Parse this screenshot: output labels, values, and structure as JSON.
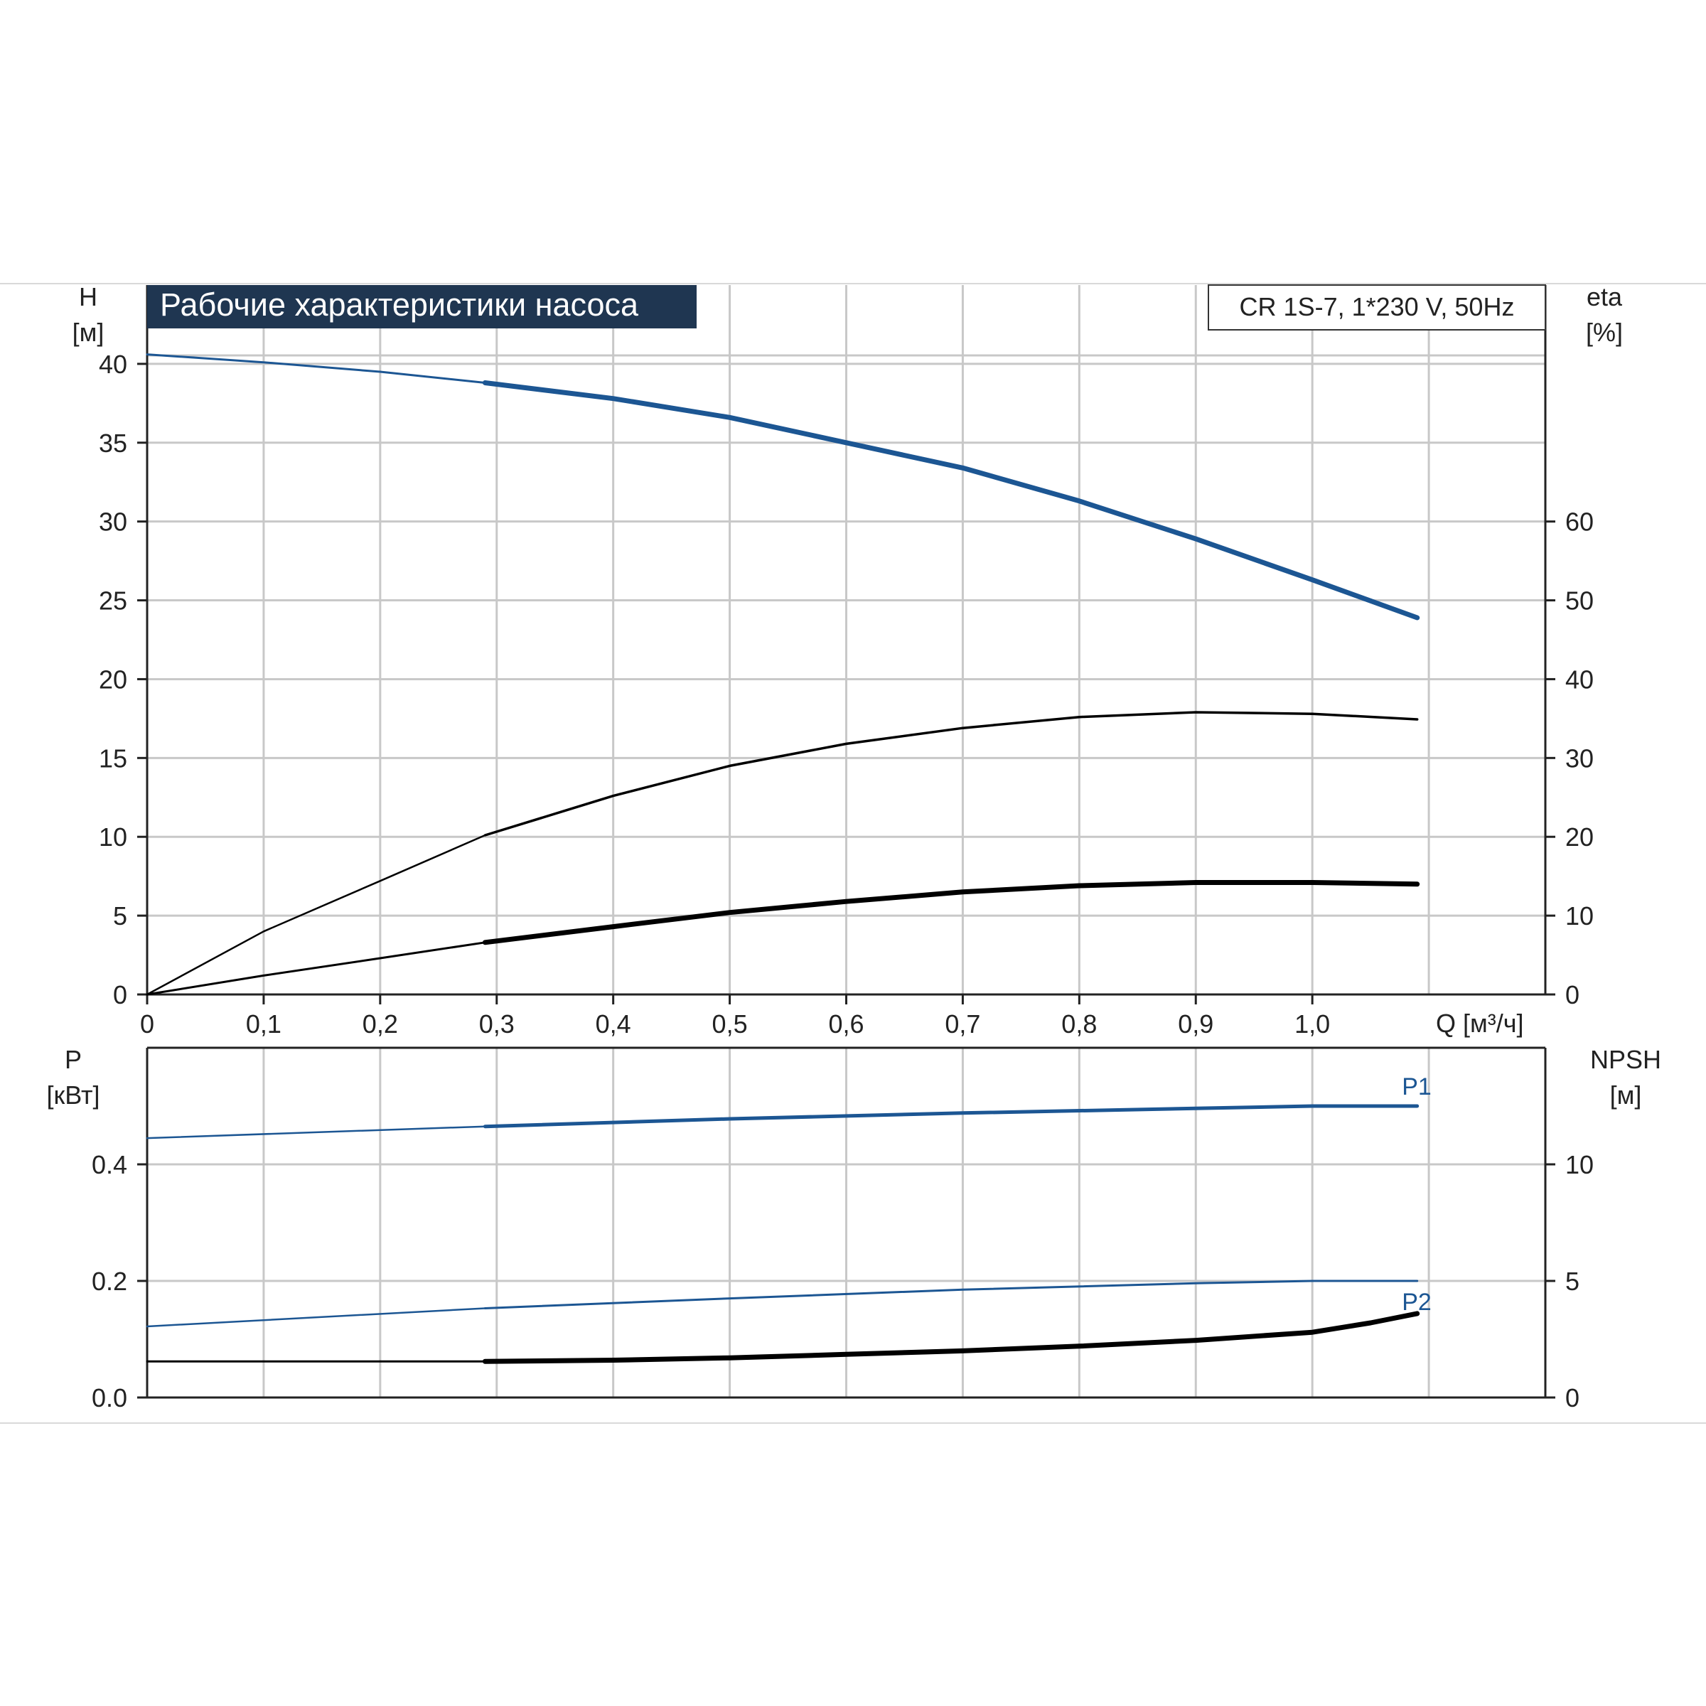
{
  "colors": {
    "blue": "#1c5693",
    "black": "#000000",
    "grid": "#c8c8c8",
    "title_bg": "#1f3651",
    "title_text": "#ffffff",
    "frame_line": "#d9d9d9"
  },
  "title": "Рабочие характеристики насоса",
  "model_label": "CR 1S-7, 1*230 V, 50Hz",
  "chart_data": [
    {
      "type": "line",
      "panel": "upper",
      "left_axis": {
        "label_top": "H",
        "label_bottom": "[м]",
        "ylim": [
          0,
          45
        ],
        "ticks": [
          0,
          5,
          10,
          15,
          20,
          25,
          30,
          35,
          40
        ],
        "tick_labels": [
          "0",
          "5",
          "10",
          "15",
          "20",
          "25",
          "30",
          "35",
          "40"
        ]
      },
      "right_axis": {
        "label_top": "eta",
        "label_bottom": "[%]",
        "ylim": [
          0,
          90
        ],
        "ticks": [
          0,
          10,
          20,
          30,
          40,
          50,
          60
        ],
        "tick_labels": [
          "0",
          "10",
          "20",
          "30",
          "40",
          "50",
          "60"
        ]
      },
      "x_axis": {
        "label": "Q [м³/ч]",
        "xlim": [
          0,
          1.2
        ],
        "ticks": [
          0,
          0.1,
          0.2,
          0.3,
          0.4,
          0.5,
          0.6,
          0.7,
          0.8,
          0.9,
          1.0
        ],
        "tick_labels": [
          "0",
          "0,1",
          "0,2",
          "0,3",
          "0,4",
          "0,5",
          "0,6",
          "0,7",
          "0,8",
          "0,9",
          "1,0"
        ]
      },
      "grid": true,
      "series": [
        {
          "axis": "left",
          "color": "blue",
          "x": [
            0,
            0.1,
            0.2,
            0.29,
            0.4,
            0.5,
            0.6,
            0.7,
            0.8,
            0.9,
            1.0,
            1.09
          ],
          "y": [
            40.6,
            40.1,
            39.5,
            38.8,
            37.8,
            36.6,
            35.0,
            33.4,
            31.3,
            28.9,
            26.3,
            23.9
          ]
        },
        {
          "axis": "right",
          "color": "black",
          "x": [
            0,
            0.1,
            0.2,
            0.29,
            0.4,
            0.5,
            0.6,
            0.7,
            0.8,
            0.9,
            1.0,
            1.09
          ],
          "y": [
            0,
            8,
            14.4,
            20.2,
            25.2,
            29.0,
            31.8,
            33.8,
            35.2,
            35.8,
            35.6,
            34.9
          ]
        },
        {
          "axis": "left",
          "color": "black",
          "x": [
            0,
            0.1,
            0.2,
            0.29,
            0.4,
            0.5,
            0.6,
            0.7,
            0.8,
            0.9,
            1.0,
            1.09
          ],
          "y": [
            0,
            1.2,
            2.3,
            3.3,
            4.3,
            5.2,
            5.9,
            6.5,
            6.9,
            7.1,
            7.1,
            7.0
          ]
        }
      ]
    },
    {
      "type": "line",
      "panel": "lower",
      "left_axis": {
        "label_top": "P",
        "label_bottom": "[кВт]",
        "ylim": [
          0,
          0.6
        ],
        "ticks": [
          0,
          0.2,
          0.4
        ],
        "tick_labels": [
          "0.0",
          "0.2",
          "0.4"
        ]
      },
      "right_axis": {
        "label_top": "NPSH",
        "label_bottom": "[м]",
        "ylim": [
          0,
          15
        ],
        "ticks": [
          0,
          5,
          10
        ],
        "tick_labels": [
          "0",
          "5",
          "10"
        ]
      },
      "x_axis": {
        "xlim": [
          0,
          1.2
        ]
      },
      "grid": true,
      "series": [
        {
          "name": "P1",
          "axis": "left",
          "color": "blue",
          "x": [
            0,
            0.29,
            0.5,
            0.7,
            0.9,
            1.0,
            1.09
          ],
          "y": [
            0.445,
            0.465,
            0.478,
            0.488,
            0.496,
            0.5,
            0.5
          ]
        },
        {
          "name": "P2",
          "axis": "left",
          "color": "blue",
          "x": [
            0,
            0.29,
            0.5,
            0.7,
            0.9,
            1.0,
            1.09
          ],
          "y": [
            0.122,
            0.153,
            0.17,
            0.185,
            0.196,
            0.2,
            0.2
          ]
        },
        {
          "axis": "right",
          "color": "black",
          "x": [
            0,
            0.29,
            0.4,
            0.5,
            0.6,
            0.7,
            0.8,
            0.9,
            1.0,
            1.05,
            1.09
          ],
          "y": [
            1.55,
            1.55,
            1.6,
            1.7,
            1.85,
            2.0,
            2.2,
            2.45,
            2.8,
            3.2,
            3.6
          ]
        }
      ]
    }
  ]
}
